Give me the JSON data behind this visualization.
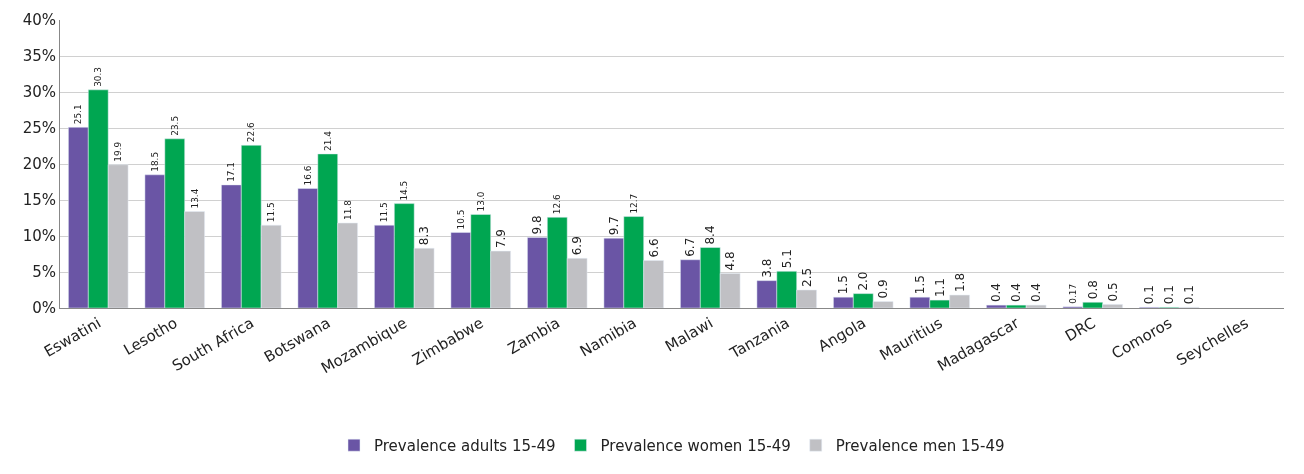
{
  "chart_data": {
    "type": "bar",
    "categories": [
      "Eswatini",
      "Lesotho",
      "South Africa",
      "Botswana",
      "Mozambique",
      "Zimbabwe",
      "Zambia",
      "Namibia",
      "Malawi",
      "Tanzania",
      "Angola",
      "Mauritius",
      "Madagascar",
      "DRC",
      "Comoros",
      "Seychelles"
    ],
    "series": [
      {
        "name": "Prevalence adults 15-49",
        "color": "#6a55a5",
        "values": [
          25.1,
          18.5,
          17.1,
          16.6,
          11.5,
          10.5,
          9.8,
          9.7,
          6.7,
          3.8,
          1.5,
          1.5,
          0.4,
          0.17,
          0.1,
          null
        ],
        "value_labels": [
          "25.1",
          "18.5",
          "17.1",
          "16.6",
          "11.5",
          "10.5",
          "9.8",
          "9.7",
          "6.7",
          "3.8",
          "1.5",
          "1.5",
          "0.4",
          "0.17",
          "0.1",
          null
        ]
      },
      {
        "name": "Prevalence women 15-49",
        "color": "#00a651",
        "values": [
          30.3,
          23.5,
          22.6,
          21.4,
          14.5,
          13.0,
          12.6,
          12.7,
          8.4,
          5.1,
          2.0,
          1.1,
          0.4,
          0.8,
          0.1,
          null
        ],
        "value_labels": [
          "30.3",
          "23.5",
          "22.6",
          "21.4",
          "14.5",
          "13.0",
          "12.6",
          "12.7",
          "8.4",
          "5.1",
          "2.0",
          "1.1",
          "0.4",
          "0.8",
          "0.1",
          null
        ]
      },
      {
        "name": "Prevalence men 15-49",
        "color": "#c0c0c4",
        "values": [
          19.9,
          13.4,
          11.5,
          11.8,
          8.3,
          7.9,
          6.9,
          6.6,
          4.8,
          2.5,
          0.9,
          1.8,
          0.4,
          0.5,
          0.1,
          null
        ],
        "value_labels": [
          "19.9",
          "13.4",
          "11.5",
          "11.8",
          "8.3",
          "7.9",
          "6.9",
          "6.6",
          "4.8",
          "2.5",
          "0.9",
          "1.8",
          "0.4",
          "0.5",
          "0.1",
          null
        ]
      }
    ],
    "ylim": [
      0,
      40
    ],
    "yticks": [
      {
        "value": 0,
        "label": "0%"
      },
      {
        "value": 5,
        "label": "5%"
      },
      {
        "value": 10,
        "label": "10%"
      },
      {
        "value": 15,
        "label": "15%"
      },
      {
        "value": 20,
        "label": "20%"
      },
      {
        "value": 25,
        "label": "25%"
      },
      {
        "value": 30,
        "label": "30%"
      },
      {
        "value": 35,
        "label": "35%"
      },
      {
        "value": 40,
        "label": "40%"
      }
    ],
    "grid": "y",
    "legend": "bottom"
  }
}
